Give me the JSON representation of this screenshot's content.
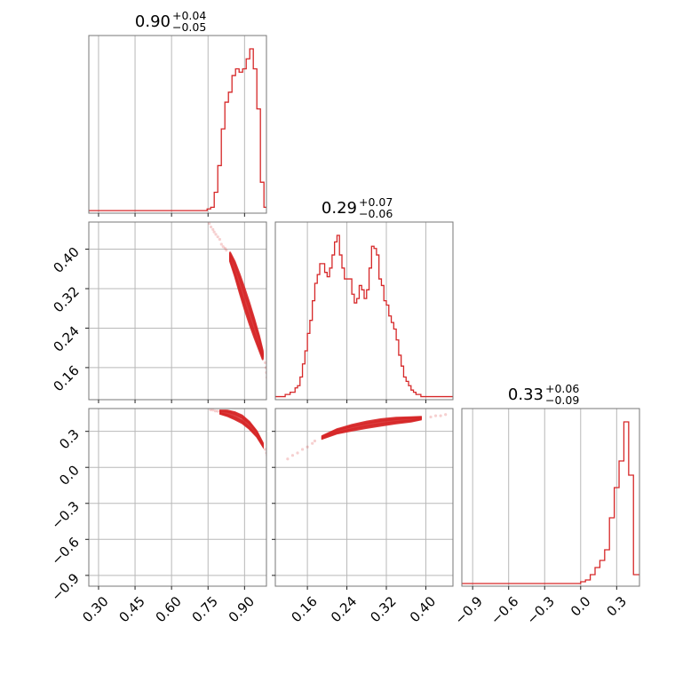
{
  "colors": {
    "series": "#d62728",
    "grid": "#b8b8b8",
    "frame": "#777777"
  },
  "chart_data": {
    "type": "corner",
    "grid": true,
    "parameters": [
      {
        "median": "0.90",
        "plus": "+0.04",
        "minus": "−0.05",
        "range": [
          0.26,
          0.99
        ]
      },
      {
        "median": "0.29",
        "plus": "+0.07",
        "minus": "−0.06",
        "range": [
          0.095,
          0.455
        ]
      },
      {
        "median": "0.33",
        "plus": "+0.06",
        "minus": "−0.09",
        "range": [
          -0.99,
          0.49
        ]
      }
    ],
    "tick_labels": [
      {
        "values": [
          0.3,
          0.45,
          0.6,
          0.75,
          0.9
        ],
        "labels": [
          "0.30",
          "0.45",
          "0.60",
          "0.75",
          "0.90"
        ]
      },
      {
        "values": [
          0.16,
          0.24,
          0.32,
          0.4
        ],
        "labels": [
          "0.16",
          "0.24",
          "0.32",
          "0.40"
        ]
      },
      {
        "values": [
          -0.9,
          -0.6,
          -0.3,
          0.0,
          0.3
        ],
        "labels": [
          "−0.9",
          "−0.6",
          "−0.3",
          "0.0",
          "0.3"
        ]
      }
    ],
    "histograms": [
      {
        "param": 0,
        "bin_edges": [
          0.26,
          0.7462,
          0.7608,
          0.7754,
          0.79,
          0.8046,
          0.8192,
          0.8338,
          0.8484,
          0.863,
          0.8776,
          0.8922,
          0.9068,
          0.9214,
          0.936,
          0.9506,
          0.9652,
          0.9798,
          0.99
        ],
        "counts": [
          1,
          2,
          3,
          12,
          28,
          50,
          66,
          72,
          82,
          86,
          84,
          86,
          92,
          98,
          86,
          62,
          18,
          3
        ]
      },
      {
        "param": 1,
        "bin_edges": [
          0.095,
          0.1,
          0.105,
          0.11,
          0.115,
          0.12,
          0.125,
          0.13,
          0.135,
          0.14,
          0.145,
          0.15,
          0.155,
          0.16,
          0.165,
          0.17,
          0.175,
          0.18,
          0.185,
          0.19,
          0.195,
          0.2,
          0.205,
          0.21,
          0.215,
          0.22,
          0.225,
          0.23,
          0.235,
          0.24,
          0.245,
          0.25,
          0.255,
          0.26,
          0.265,
          0.27,
          0.275,
          0.28,
          0.285,
          0.29,
          0.295,
          0.3,
          0.305,
          0.31,
          0.315,
          0.32,
          0.325,
          0.33,
          0.335,
          0.34,
          0.345,
          0.35,
          0.355,
          0.36,
          0.365,
          0.37,
          0.375,
          0.38,
          0.385,
          0.39,
          0.395,
          0.4,
          0.405,
          0.41,
          0.415,
          0.42,
          0.425,
          0.43,
          0.435,
          0.44,
          0.445,
          0.45,
          0.455
        ],
        "counts": [
          1,
          1,
          1,
          1,
          2,
          2,
          3,
          3,
          5,
          6,
          10,
          16,
          22,
          30,
          36,
          45,
          53,
          57,
          62,
          62,
          58,
          56,
          60,
          66,
          72,
          75,
          66,
          60,
          55,
          55,
          55,
          48,
          44,
          46,
          52,
          50,
          46,
          50,
          60,
          70,
          69,
          66,
          55,
          52,
          45,
          43,
          38,
          35,
          32,
          27,
          20,
          15,
          10,
          8,
          6,
          4,
          3,
          2,
          2,
          1,
          1,
          1,
          1,
          1,
          1,
          1,
          1,
          1,
          1,
          1,
          1,
          1
        ]
      },
      {
        "param": 2,
        "bin_edges": [
          -0.99,
          0.0,
          0.04,
          0.08,
          0.12,
          0.16,
          0.2,
          0.24,
          0.28,
          0.32,
          0.36,
          0.4,
          0.44,
          0.49
        ],
        "counts": [
          1,
          2,
          3,
          6,
          10,
          14,
          20,
          38,
          55,
          70,
          92,
          62,
          6
        ]
      }
    ],
    "contours": [
      {
        "x_param": 0,
        "y_param": 1,
        "centerline": [
          [
            0.84,
            0.385
          ],
          [
            0.86,
            0.36
          ],
          [
            0.88,
            0.33
          ],
          [
            0.9,
            0.3
          ],
          [
            0.92,
            0.27
          ],
          [
            0.94,
            0.24
          ],
          [
            0.96,
            0.21
          ],
          [
            0.975,
            0.185
          ]
        ],
        "half_widths": [
          0.005,
          0.01,
          0.016,
          0.022
        ],
        "scatter": [
          [
            0.755,
            0.452
          ],
          [
            0.762,
            0.445
          ],
          [
            0.77,
            0.44
          ],
          [
            0.775,
            0.435
          ],
          [
            0.782,
            0.43
          ],
          [
            0.79,
            0.425
          ],
          [
            0.798,
            0.42
          ],
          [
            0.805,
            0.41
          ],
          [
            0.812,
            0.405
          ],
          [
            0.82,
            0.402
          ],
          [
            0.825,
            0.398
          ],
          [
            0.985,
            0.17
          ],
          [
            0.988,
            0.16
          ],
          [
            0.99,
            0.15
          ],
          [
            0.992,
            0.14
          ]
        ]
      },
      {
        "x_param": 0,
        "y_param": 2,
        "centerline": [
          [
            0.8,
            0.46
          ],
          [
            0.83,
            0.45
          ],
          [
            0.86,
            0.43
          ],
          [
            0.89,
            0.4
          ],
          [
            0.92,
            0.35
          ],
          [
            0.95,
            0.28
          ],
          [
            0.975,
            0.19
          ]
        ],
        "half_widths": [
          0.008,
          0.016,
          0.025,
          0.033
        ],
        "scatter": [
          [
            0.76,
            0.48
          ],
          [
            0.77,
            0.478
          ],
          [
            0.78,
            0.47
          ],
          [
            0.79,
            0.468
          ],
          [
            0.985,
            0.15
          ],
          [
            0.99,
            0.12
          ],
          [
            0.993,
            0.1
          ]
        ]
      },
      {
        "x_param": 1,
        "y_param": 2,
        "centerline": [
          [
            0.19,
            0.25
          ],
          [
            0.22,
            0.3
          ],
          [
            0.25,
            0.33
          ],
          [
            0.28,
            0.355
          ],
          [
            0.31,
            0.375
          ],
          [
            0.34,
            0.39
          ],
          [
            0.37,
            0.4
          ],
          [
            0.39,
            0.41
          ]
        ],
        "half_widths": [
          0.006,
          0.012,
          0.02,
          0.028
        ],
        "scatter": [
          [
            0.12,
            0.07
          ],
          [
            0.13,
            0.1
          ],
          [
            0.14,
            0.12
          ],
          [
            0.15,
            0.15
          ],
          [
            0.16,
            0.17
          ],
          [
            0.17,
            0.2
          ],
          [
            0.175,
            0.22
          ],
          [
            0.41,
            0.42
          ],
          [
            0.42,
            0.43
          ],
          [
            0.43,
            0.43
          ],
          [
            0.44,
            0.44
          ]
        ]
      }
    ]
  }
}
